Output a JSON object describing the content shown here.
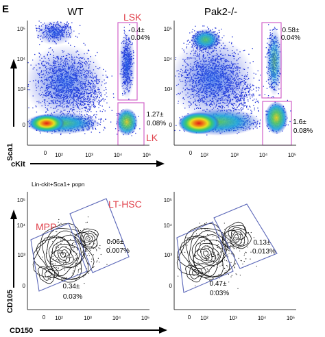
{
  "panel_letter": "E",
  "colors": {
    "gate_magenta": "#d060c8",
    "gate_blue": "#5a66b8",
    "gate_label_red": "#e0404a",
    "density_low": "#1d2fd6",
    "density_high": "#e0241c",
    "contour": "#111111"
  },
  "top_row": {
    "x_axis_label": "cKit",
    "y_axis_label": "Sca1",
    "panels": [
      {
        "title": "WT",
        "gate_labels": [
          "LSK",
          "LK"
        ],
        "lsk_freq": [
          "0.4±",
          "0.04%"
        ],
        "lk_freq": [
          "1.27±",
          "0.08%"
        ],
        "y_ticks": [
          "10⁵",
          "10⁴",
          "10³",
          "0"
        ],
        "x_ticks": [
          "0",
          "10²",
          "10³",
          "10⁴",
          "10⁵"
        ]
      },
      {
        "title": "Pak2-/-",
        "lsk_freq": [
          "0.58±",
          "0.04%"
        ],
        "lk_freq": [
          "1.6±",
          "0.08%"
        ],
        "y_ticks": [
          "10⁵",
          "10⁴",
          "10³",
          "0"
        ],
        "x_ticks": [
          "0",
          "10²",
          "10³",
          "10⁴",
          "10⁵"
        ]
      }
    ]
  },
  "bottom_row": {
    "x_axis_label": "CD150",
    "y_axis_label": "CD105",
    "panels": [
      {
        "subtitle": "Lin-ckit+Sca1+ popn",
        "gate_labels": [
          "LT-HSC",
          "MPP"
        ],
        "lthsc_freq": [
          "0.06±",
          "0.007%"
        ],
        "mpp_freq": [
          "0.34±",
          "0.03%"
        ],
        "y_ticks": [
          "10⁵",
          "10⁴",
          "10³",
          "0"
        ],
        "x_ticks": [
          "0",
          "10²",
          "10³",
          "10⁴",
          "10⁵"
        ]
      },
      {
        "lthsc_freq": [
          "0.13±",
          "0.013%"
        ],
        "mpp_freq": [
          "0.47±",
          "0.03%"
        ],
        "y_ticks": [
          "10⁵",
          "10⁴",
          "10³",
          "0"
        ],
        "x_ticks": [
          "0",
          "10²",
          "10³",
          "10⁴",
          "10⁵"
        ]
      }
    ]
  }
}
